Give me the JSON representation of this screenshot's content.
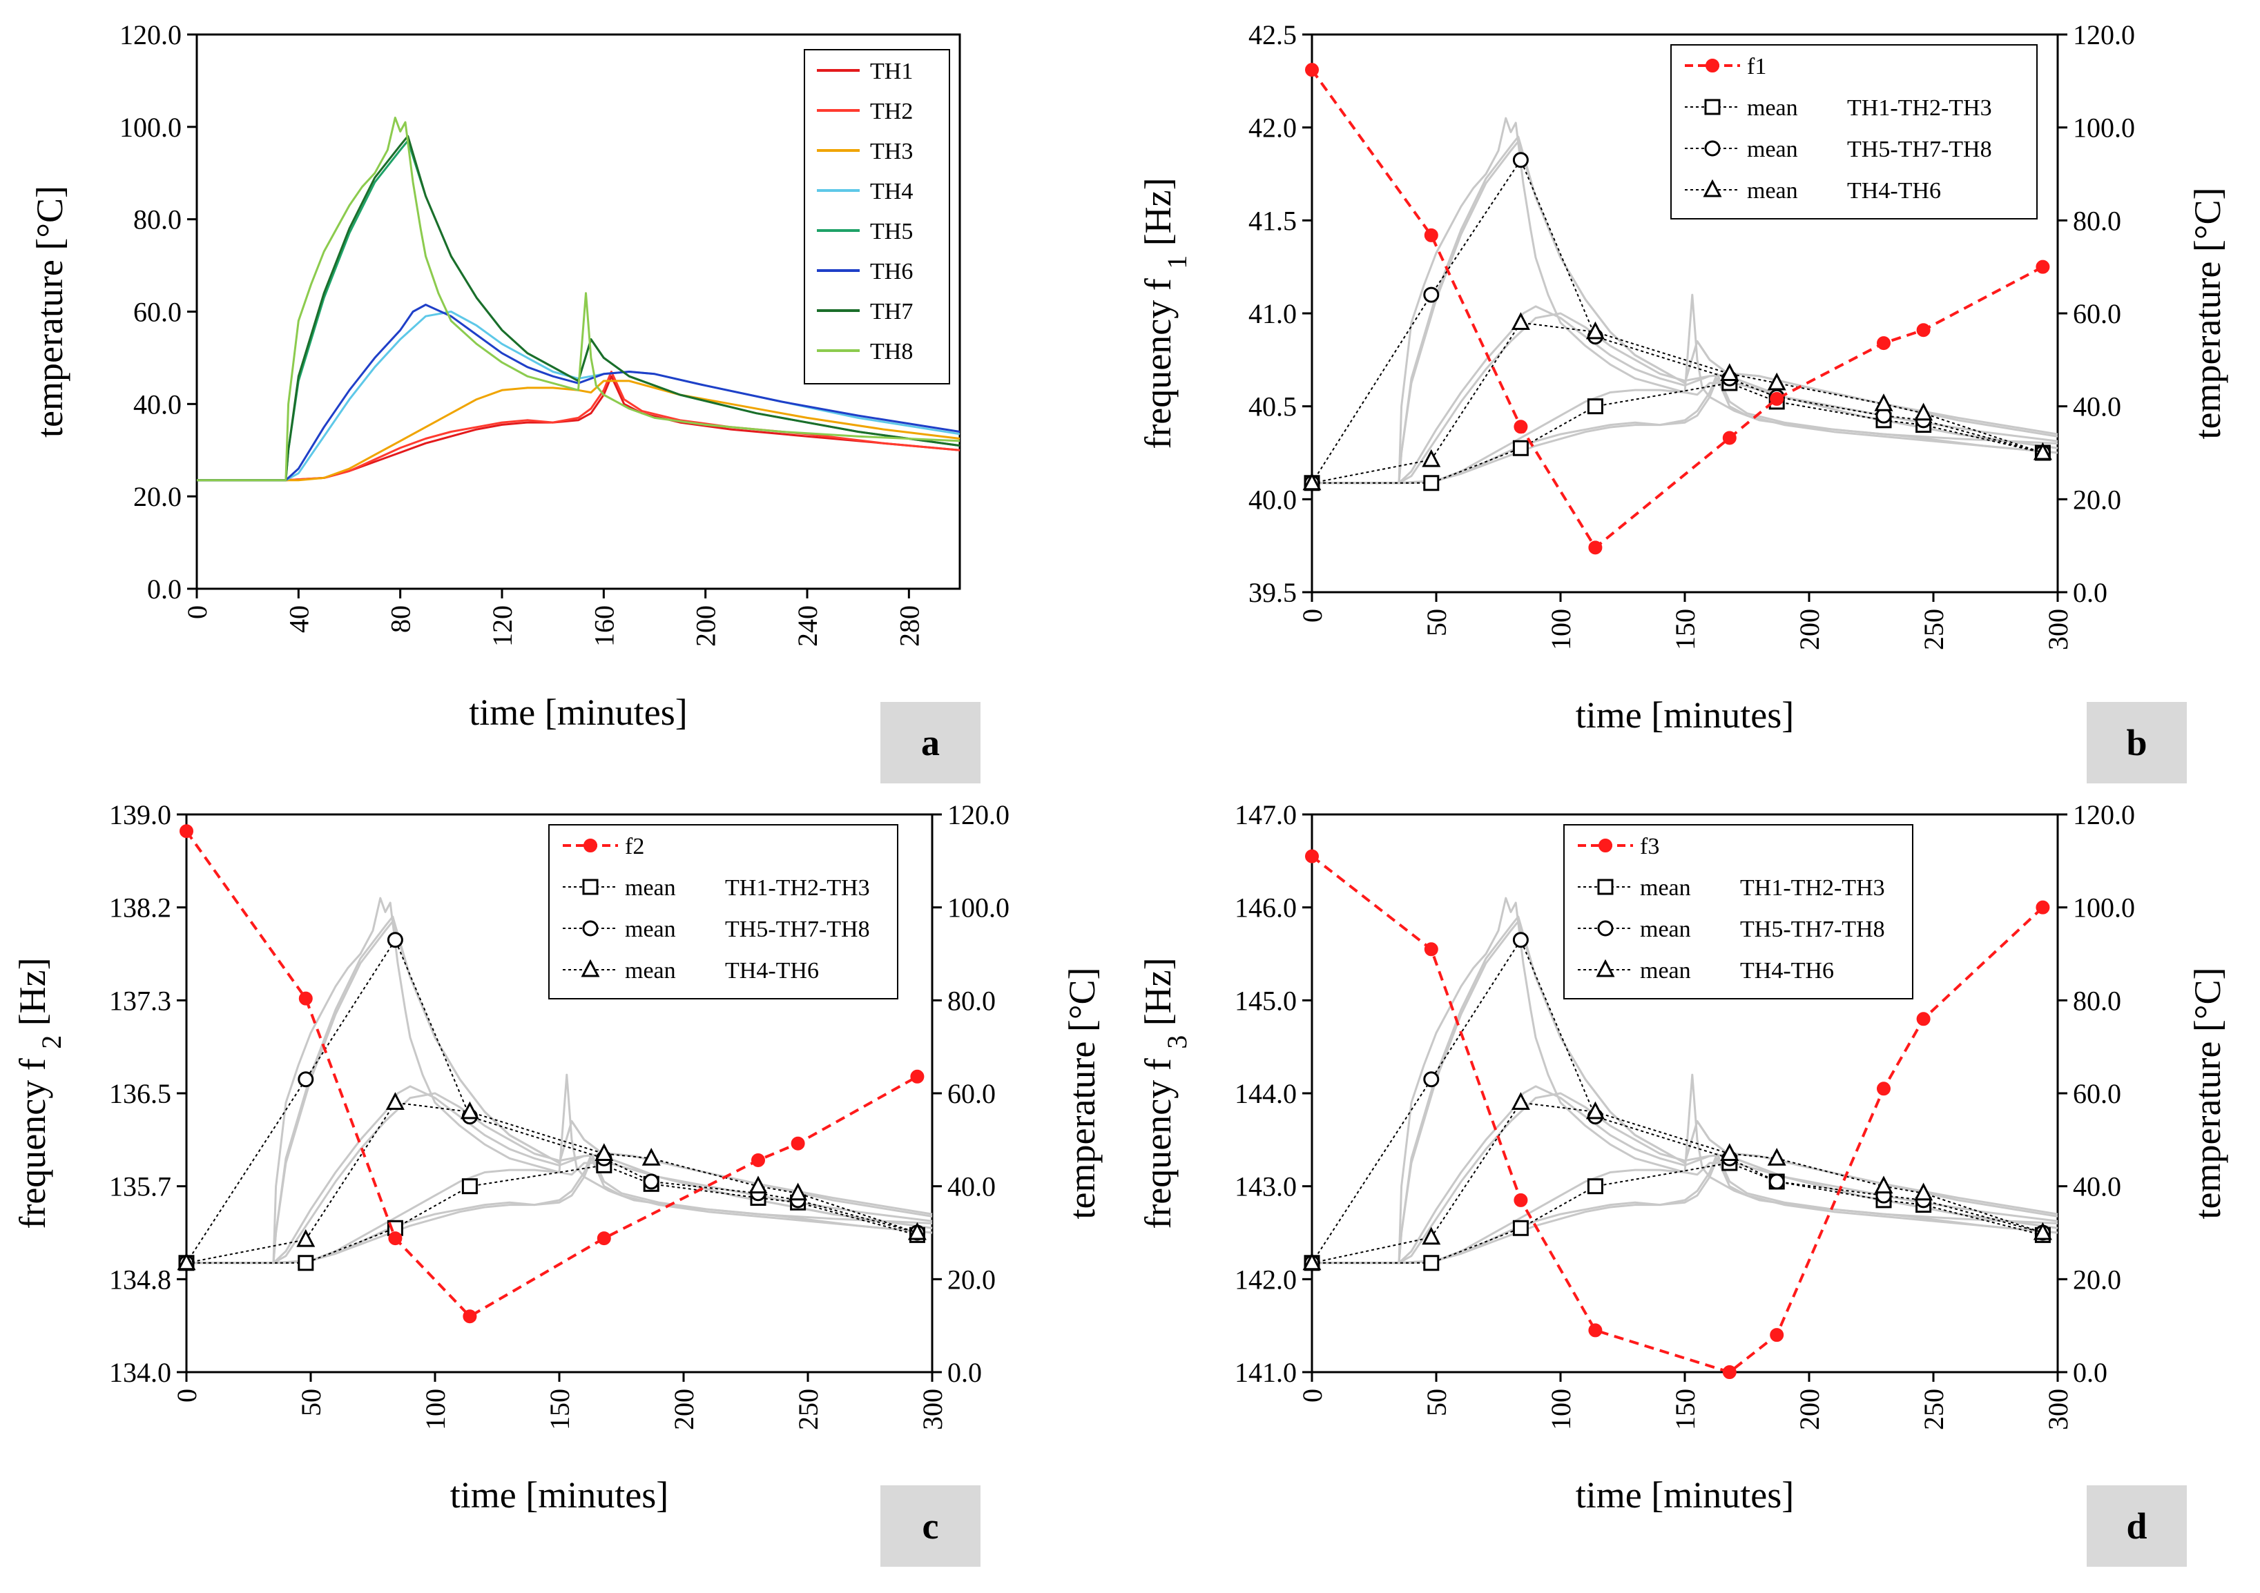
{
  "chart_data": [
    {
      "panel": "a",
      "type": "line",
      "xlabel": "time [minutes]",
      "ylabel": "temperature [°C]",
      "xlim": [
        0,
        300
      ],
      "ylim": [
        0,
        120
      ],
      "xticks": [
        "0",
        "40",
        "80",
        "120",
        "160",
        "200",
        "240",
        "280"
      ],
      "yticks": [
        "0.0",
        "20.0",
        "40.0",
        "60.0",
        "80.0",
        "100.0",
        "120.0"
      ],
      "panel_label": "a",
      "legend": [
        "TH1",
        "TH2",
        "TH3",
        "TH4",
        "TH5",
        "TH6",
        "TH7",
        "TH8"
      ],
      "series": [
        {
          "name": "TH1",
          "color": "#e31a1c",
          "x": [
            0,
            35,
            50,
            60,
            70,
            80,
            90,
            100,
            110,
            120,
            130,
            140,
            150,
            155,
            160,
            163,
            168,
            175,
            190,
            210,
            240,
            270,
            300
          ],
          "y": [
            23.5,
            23.5,
            24,
            25.5,
            27.5,
            29.5,
            31.5,
            33,
            34.5,
            35.5,
            36,
            36,
            36.5,
            38,
            42,
            46,
            40,
            38,
            36,
            34.5,
            33,
            31.5,
            30
          ]
        },
        {
          "name": "TH2",
          "color": "#ff3b2f",
          "x": [
            0,
            35,
            50,
            60,
            70,
            80,
            90,
            100,
            110,
            120,
            130,
            140,
            150,
            155,
            160,
            163,
            168,
            175,
            190,
            210,
            240,
            270,
            300
          ],
          "y": [
            23.5,
            23.5,
            24,
            25.5,
            28,
            30.5,
            32.5,
            34,
            35,
            36,
            36.5,
            36,
            37,
            39,
            43,
            47,
            41,
            38.5,
            36.5,
            35,
            33.5,
            31.5,
            30
          ]
        },
        {
          "name": "TH3",
          "color": "#f0a400",
          "x": [
            0,
            40,
            50,
            60,
            70,
            80,
            90,
            100,
            110,
            120,
            130,
            140,
            150,
            155,
            160,
            170,
            190,
            210,
            240,
            270,
            300
          ],
          "y": [
            23.5,
            23.5,
            24,
            26,
            29,
            32,
            35,
            38,
            41,
            43,
            43.5,
            43.5,
            43,
            42.5,
            45,
            45,
            42,
            40,
            37,
            34.5,
            32.5
          ]
        },
        {
          "name": "TH4",
          "color": "#5ec8e8",
          "x": [
            0,
            35,
            40,
            50,
            60,
            70,
            80,
            90,
            100,
            110,
            120,
            130,
            140,
            150,
            160,
            170,
            180,
            200,
            230,
            260,
            300
          ],
          "y": [
            23.5,
            23.5,
            25,
            33,
            41,
            48,
            54,
            59,
            60,
            57,
            53,
            50,
            47,
            45.5,
            46.5,
            47,
            46.5,
            44,
            40.5,
            37,
            33.5
          ]
        },
        {
          "name": "TH5",
          "color": "#1fa268",
          "x": [
            0,
            35,
            36,
            40,
            50,
            60,
            70,
            80,
            83,
            90,
            100,
            110,
            120,
            130,
            140,
            150,
            155,
            160,
            170,
            190,
            220,
            260,
            300
          ],
          "y": [
            23.5,
            23.5,
            30,
            45,
            63,
            77,
            88,
            95,
            97,
            85,
            72,
            63,
            56,
            51,
            48,
            45,
            54,
            50,
            46,
            42,
            38,
            34,
            31
          ]
        },
        {
          "name": "TH6",
          "color": "#1f3fc8",
          "x": [
            0,
            35,
            40,
            50,
            60,
            70,
            80,
            85,
            90,
            100,
            110,
            120,
            130,
            140,
            150,
            160,
            170,
            180,
            200,
            230,
            260,
            300
          ],
          "y": [
            23.5,
            23.5,
            26,
            35,
            43,
            50,
            56,
            60,
            61.5,
            59,
            55,
            51,
            48,
            46,
            44.5,
            46.5,
            47,
            46.5,
            44,
            40.5,
            37.5,
            34
          ]
        },
        {
          "name": "TH7",
          "color": "#1b6e2a",
          "x": [
            0,
            35,
            36,
            40,
            50,
            60,
            70,
            80,
            83,
            90,
            100,
            110,
            120,
            130,
            140,
            150,
            155,
            160,
            170,
            190,
            220,
            260,
            300
          ],
          "y": [
            23.5,
            23.5,
            30,
            46,
            64,
            78,
            89,
            96,
            98,
            85,
            72,
            63,
            56,
            51,
            48,
            45,
            54,
            50,
            46,
            42,
            38,
            34,
            31
          ]
        },
        {
          "name": "TH8",
          "color": "#8ccb4e",
          "x": [
            0,
            35,
            36,
            40,
            45,
            50,
            55,
            60,
            65,
            70,
            75,
            78,
            80,
            82,
            85,
            88,
            90,
            95,
            100,
            110,
            120,
            130,
            140,
            150,
            153,
            155,
            157,
            160,
            170,
            180,
            200,
            230,
            260,
            300
          ],
          "y": [
            23.5,
            23.5,
            40,
            58,
            66,
            73,
            78,
            83,
            87,
            90,
            95,
            102,
            99,
            101,
            88,
            78,
            72,
            64,
            58,
            53,
            49,
            46,
            44.5,
            43,
            64,
            50,
            44,
            42,
            39,
            37,
            35.5,
            34,
            33,
            32
          ]
        }
      ]
    },
    {
      "panel": "b",
      "type": "line",
      "xlabel": "time [minutes]",
      "ylabel_left": "frequency f",
      "ylabel_left_sub": "1",
      "ylabel_left_unit": "[Hz]",
      "ylabel_right": "temperature [°C]",
      "xlim": [
        0,
        300
      ],
      "ylim_left": [
        39.5,
        42.5
      ],
      "ylim_right": [
        0,
        120
      ],
      "xticks": [
        "0",
        "50",
        "100",
        "150",
        "200",
        "250",
        "300"
      ],
      "yticks_left": [
        "39.5",
        "40.0",
        "40.5",
        "41.0",
        "41.5",
        "42.0",
        "42.5"
      ],
      "yticks_right": [
        "0.0",
        "20.0",
        "40.0",
        "60.0",
        "80.0",
        "100.0",
        "120.0"
      ],
      "panel_label": "b",
      "frequency_series": {
        "name": "f1",
        "color": "#ff1a1a",
        "x": [
          0,
          48,
          84,
          114,
          168,
          187,
          230,
          246,
          294
        ],
        "y": [
          42.31,
          41.42,
          40.39,
          39.74,
          40.33,
          40.54,
          40.84,
          40.91,
          41.25
        ]
      },
      "mean_series": [
        {
          "name": "mean",
          "group": "TH1-TH2-TH3",
          "marker": "square",
          "x": [
            0,
            48,
            84,
            114,
            168,
            187,
            230,
            246,
            294
          ],
          "y": [
            23.5,
            23.5,
            31,
            40,
            45,
            41,
            37,
            36,
            30
          ]
        },
        {
          "name": "mean",
          "group": "TH5-TH7-TH8",
          "marker": "circle",
          "x": [
            0,
            48,
            84,
            114,
            168,
            187,
            230,
            246,
            294
          ],
          "y": [
            23.5,
            64,
            93,
            55,
            46,
            42,
            38,
            37,
            30
          ]
        },
        {
          "name": "mean",
          "group": "TH4-TH6",
          "marker": "triangle",
          "x": [
            0,
            48,
            84,
            114,
            168,
            187,
            230,
            246,
            294
          ],
          "y": [
            23.5,
            28.5,
            58,
            56,
            47,
            45,
            40.5,
            38.5,
            30
          ]
        }
      ]
    },
    {
      "panel": "c",
      "type": "line",
      "xlabel": "time [minutes]",
      "ylabel_left": "frequency f",
      "ylabel_left_sub": "2",
      "ylabel_left_unit": "[Hz]",
      "ylabel_right": "temperature [°C]",
      "xlim": [
        0,
        300
      ],
      "ylim_left": [
        134.0,
        139.0
      ],
      "ylim_right": [
        0,
        120
      ],
      "xticks": [
        "0",
        "50",
        "100",
        "150",
        "200",
        "250",
        "300"
      ],
      "yticks_left": [
        "134.0",
        "134.8",
        "135.7",
        "136.5",
        "137.3",
        "138.2",
        "139.0"
      ],
      "yticks_right": [
        "0.0",
        "20.0",
        "40.0",
        "60.0",
        "80.0",
        "100.0",
        "120.0"
      ],
      "panel_label": "c",
      "frequency_series": {
        "name": "f2",
        "color": "#ff1a1a",
        "x": [
          0,
          48,
          84,
          114,
          168,
          230,
          246,
          294
        ],
        "y": [
          138.85,
          137.35,
          135.2,
          134.5,
          135.2,
          135.9,
          136.05,
          136.65
        ]
      },
      "mean_series": [
        {
          "name": "mean",
          "group": "TH1-TH2-TH3",
          "marker": "square",
          "x": [
            0,
            48,
            84,
            114,
            168,
            187,
            230,
            246,
            294
          ],
          "y": [
            23.5,
            23.5,
            31,
            40,
            44.5,
            40.5,
            37.5,
            36.5,
            29.5
          ]
        },
        {
          "name": "mean",
          "group": "TH5-TH7-TH8",
          "marker": "circle",
          "x": [
            0,
            48,
            84,
            114,
            168,
            187,
            230,
            246,
            294
          ],
          "y": [
            23.5,
            63,
            93,
            55,
            46,
            41,
            38.5,
            37,
            30
          ]
        },
        {
          "name": "mean",
          "group": "TH4-TH6",
          "marker": "triangle",
          "x": [
            0,
            48,
            84,
            114,
            168,
            187,
            230,
            246,
            294
          ],
          "y": [
            23.5,
            28.5,
            58,
            56,
            47,
            46,
            40,
            38.5,
            30
          ]
        }
      ]
    },
    {
      "panel": "d",
      "type": "line",
      "xlabel": "time [minutes]",
      "ylabel_left": "frequency f",
      "ylabel_left_sub": "3",
      "ylabel_left_unit": "[Hz]",
      "ylabel_right": "temperature [°C]",
      "xlim": [
        0,
        300
      ],
      "ylim_left": [
        141.0,
        147.0
      ],
      "ylim_right": [
        0,
        120
      ],
      "xticks": [
        "0",
        "50",
        "100",
        "150",
        "200",
        "250",
        "300"
      ],
      "yticks_left": [
        "141.0",
        "142.0",
        "143.0",
        "144.0",
        "145.0",
        "146.0",
        "147.0"
      ],
      "yticks_right": [
        "0.0",
        "20.0",
        "40.0",
        "60.0",
        "80.0",
        "100.0",
        "120.0"
      ],
      "panel_label": "d",
      "frequency_series": {
        "name": "f3",
        "color": "#ff1a1a",
        "x": [
          0,
          48,
          84,
          114,
          168,
          187,
          230,
          246,
          294
        ],
        "y": [
          146.55,
          145.55,
          142.85,
          141.45,
          141.0,
          141.4,
          144.05,
          144.8,
          146.0
        ]
      },
      "mean_series": [
        {
          "name": "mean",
          "group": "TH1-TH2-TH3",
          "marker": "square",
          "x": [
            0,
            48,
            84,
            114,
            168,
            187,
            230,
            246,
            294
          ],
          "y": [
            23.5,
            23.5,
            31,
            40,
            45,
            41,
            37,
            36,
            29.5
          ]
        },
        {
          "name": "mean",
          "group": "TH5-TH7-TH8",
          "marker": "circle",
          "x": [
            0,
            48,
            84,
            114,
            168,
            187,
            230,
            246,
            294
          ],
          "y": [
            23.5,
            63,
            93,
            55,
            46,
            41,
            38,
            37,
            30
          ]
        },
        {
          "name": "mean",
          "group": "TH4-TH6",
          "marker": "triangle",
          "x": [
            0,
            48,
            84,
            114,
            168,
            187,
            230,
            246,
            294
          ],
          "y": [
            23.5,
            29,
            58,
            56,
            47,
            46,
            40,
            38.5,
            30
          ]
        }
      ]
    }
  ]
}
